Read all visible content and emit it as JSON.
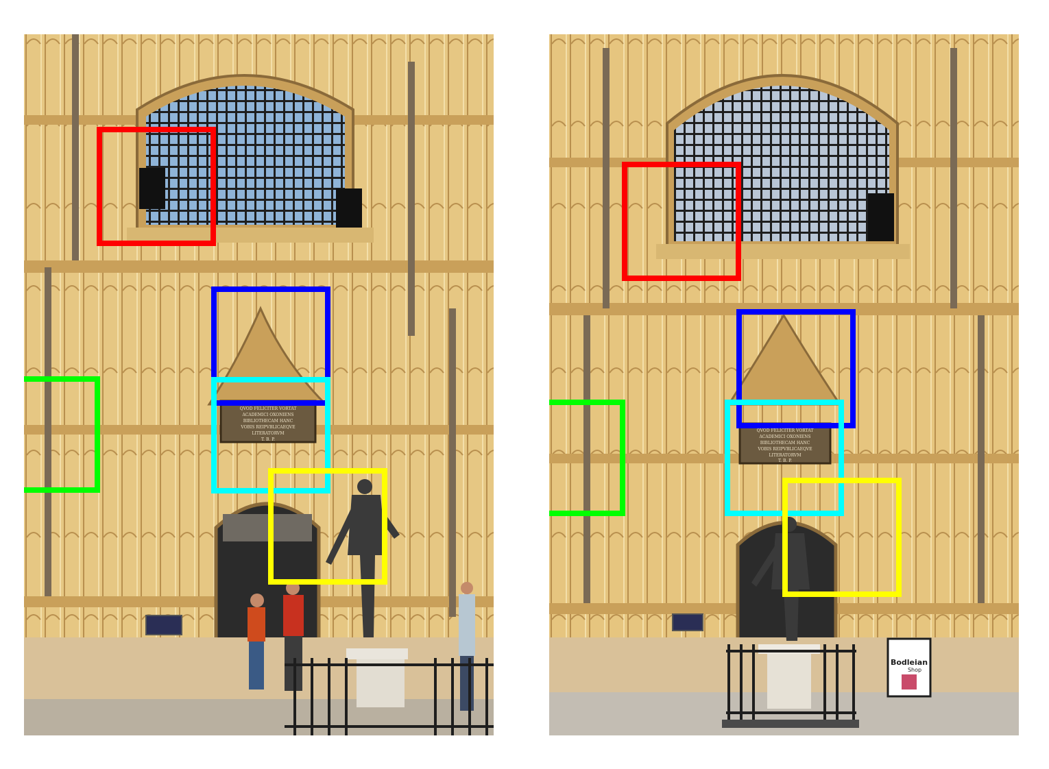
{
  "figure": {
    "description_kind": "paired photographs of the same building facade with colored correspondence boxes",
    "colors": {
      "stone": "#e3c27e",
      "stone_dark": "#c9a05a",
      "stone_light": "#f0dba6",
      "shadow": "#8a6a3a",
      "glass": "#8fb4d8",
      "mullion": "#2a2a2a",
      "door": "#2b2b2b",
      "statue": "#3a3a3a",
      "ground": "#b9b0a0",
      "sky": "#dfe8ee"
    },
    "boxes": [
      {
        "id": "red",
        "color": "#ff0000"
      },
      {
        "id": "blue",
        "color": "#0000ff"
      },
      {
        "id": "green",
        "color": "#00ff00"
      },
      {
        "id": "cyan",
        "color": "#00ffff"
      },
      {
        "id": "yellow",
        "color": "#ffff00"
      }
    ],
    "plaque_text": {
      "line1": "QVOD FELICITER VORTAT",
      "line2": "ACADEMICI OXONIENS",
      "line3": "BIBLIOTHECAM HANC",
      "line4": "VOBIS REIPVBLICAEQVE",
      "line5": "LITERATORVM",
      "line6": "T. B. P."
    },
    "shop_sign": {
      "line1": "Bodleian",
      "line2": "Shop"
    }
  }
}
